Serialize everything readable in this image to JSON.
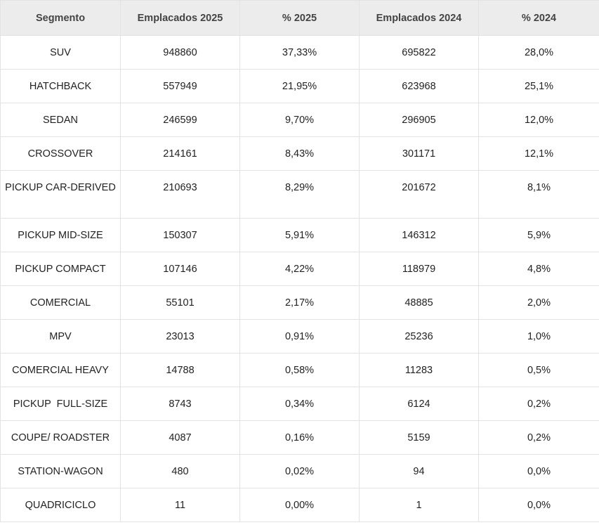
{
  "table": {
    "headers": [
      "Segmento",
      "Emplacados 2025",
      "% 2025",
      "Emplacados 2024",
      "% 2024"
    ],
    "rows": [
      [
        "SUV",
        "948860",
        "37,33%",
        "695822",
        "28,0%"
      ],
      [
        "HATCHBACK",
        "557949",
        "21,95%",
        "623968",
        "25,1%"
      ],
      [
        "SEDAN",
        "246599",
        "9,70%",
        "296905",
        "12,0%"
      ],
      [
        "CROSSOVER",
        "214161",
        "8,43%",
        "301171",
        "12,1%"
      ],
      [
        "PICKUP CAR-DERIVED",
        "210693",
        "8,29%",
        "201672",
        "8,1%"
      ],
      [
        "PICKUP MID-SIZE",
        "150307",
        "5,91%",
        "146312",
        "5,9%"
      ],
      [
        "PICKUP COMPACT",
        "107146",
        "4,22%",
        "118979",
        "4,8%"
      ],
      [
        "COMERCIAL",
        "55101",
        "2,17%",
        "48885",
        "2,0%"
      ],
      [
        "MPV",
        "23013",
        "0,91%",
        "25236",
        "1,0%"
      ],
      [
        "COMERCIAL HEAVY",
        "14788",
        "0,58%",
        "11283",
        "0,5%"
      ],
      [
        "PICKUP  FULL-SIZE",
        "8743",
        "0,34%",
        "6124",
        "0,2%"
      ],
      [
        "COUPE/ ROADSTER",
        "4087",
        "0,16%",
        "5159",
        "0,2%"
      ],
      [
        "STATION-WAGON",
        "480",
        "0,02%",
        "94",
        "0,0%"
      ],
      [
        "QUADRICICLO",
        "11",
        "0,00%",
        "1",
        "0,0%"
      ]
    ]
  }
}
